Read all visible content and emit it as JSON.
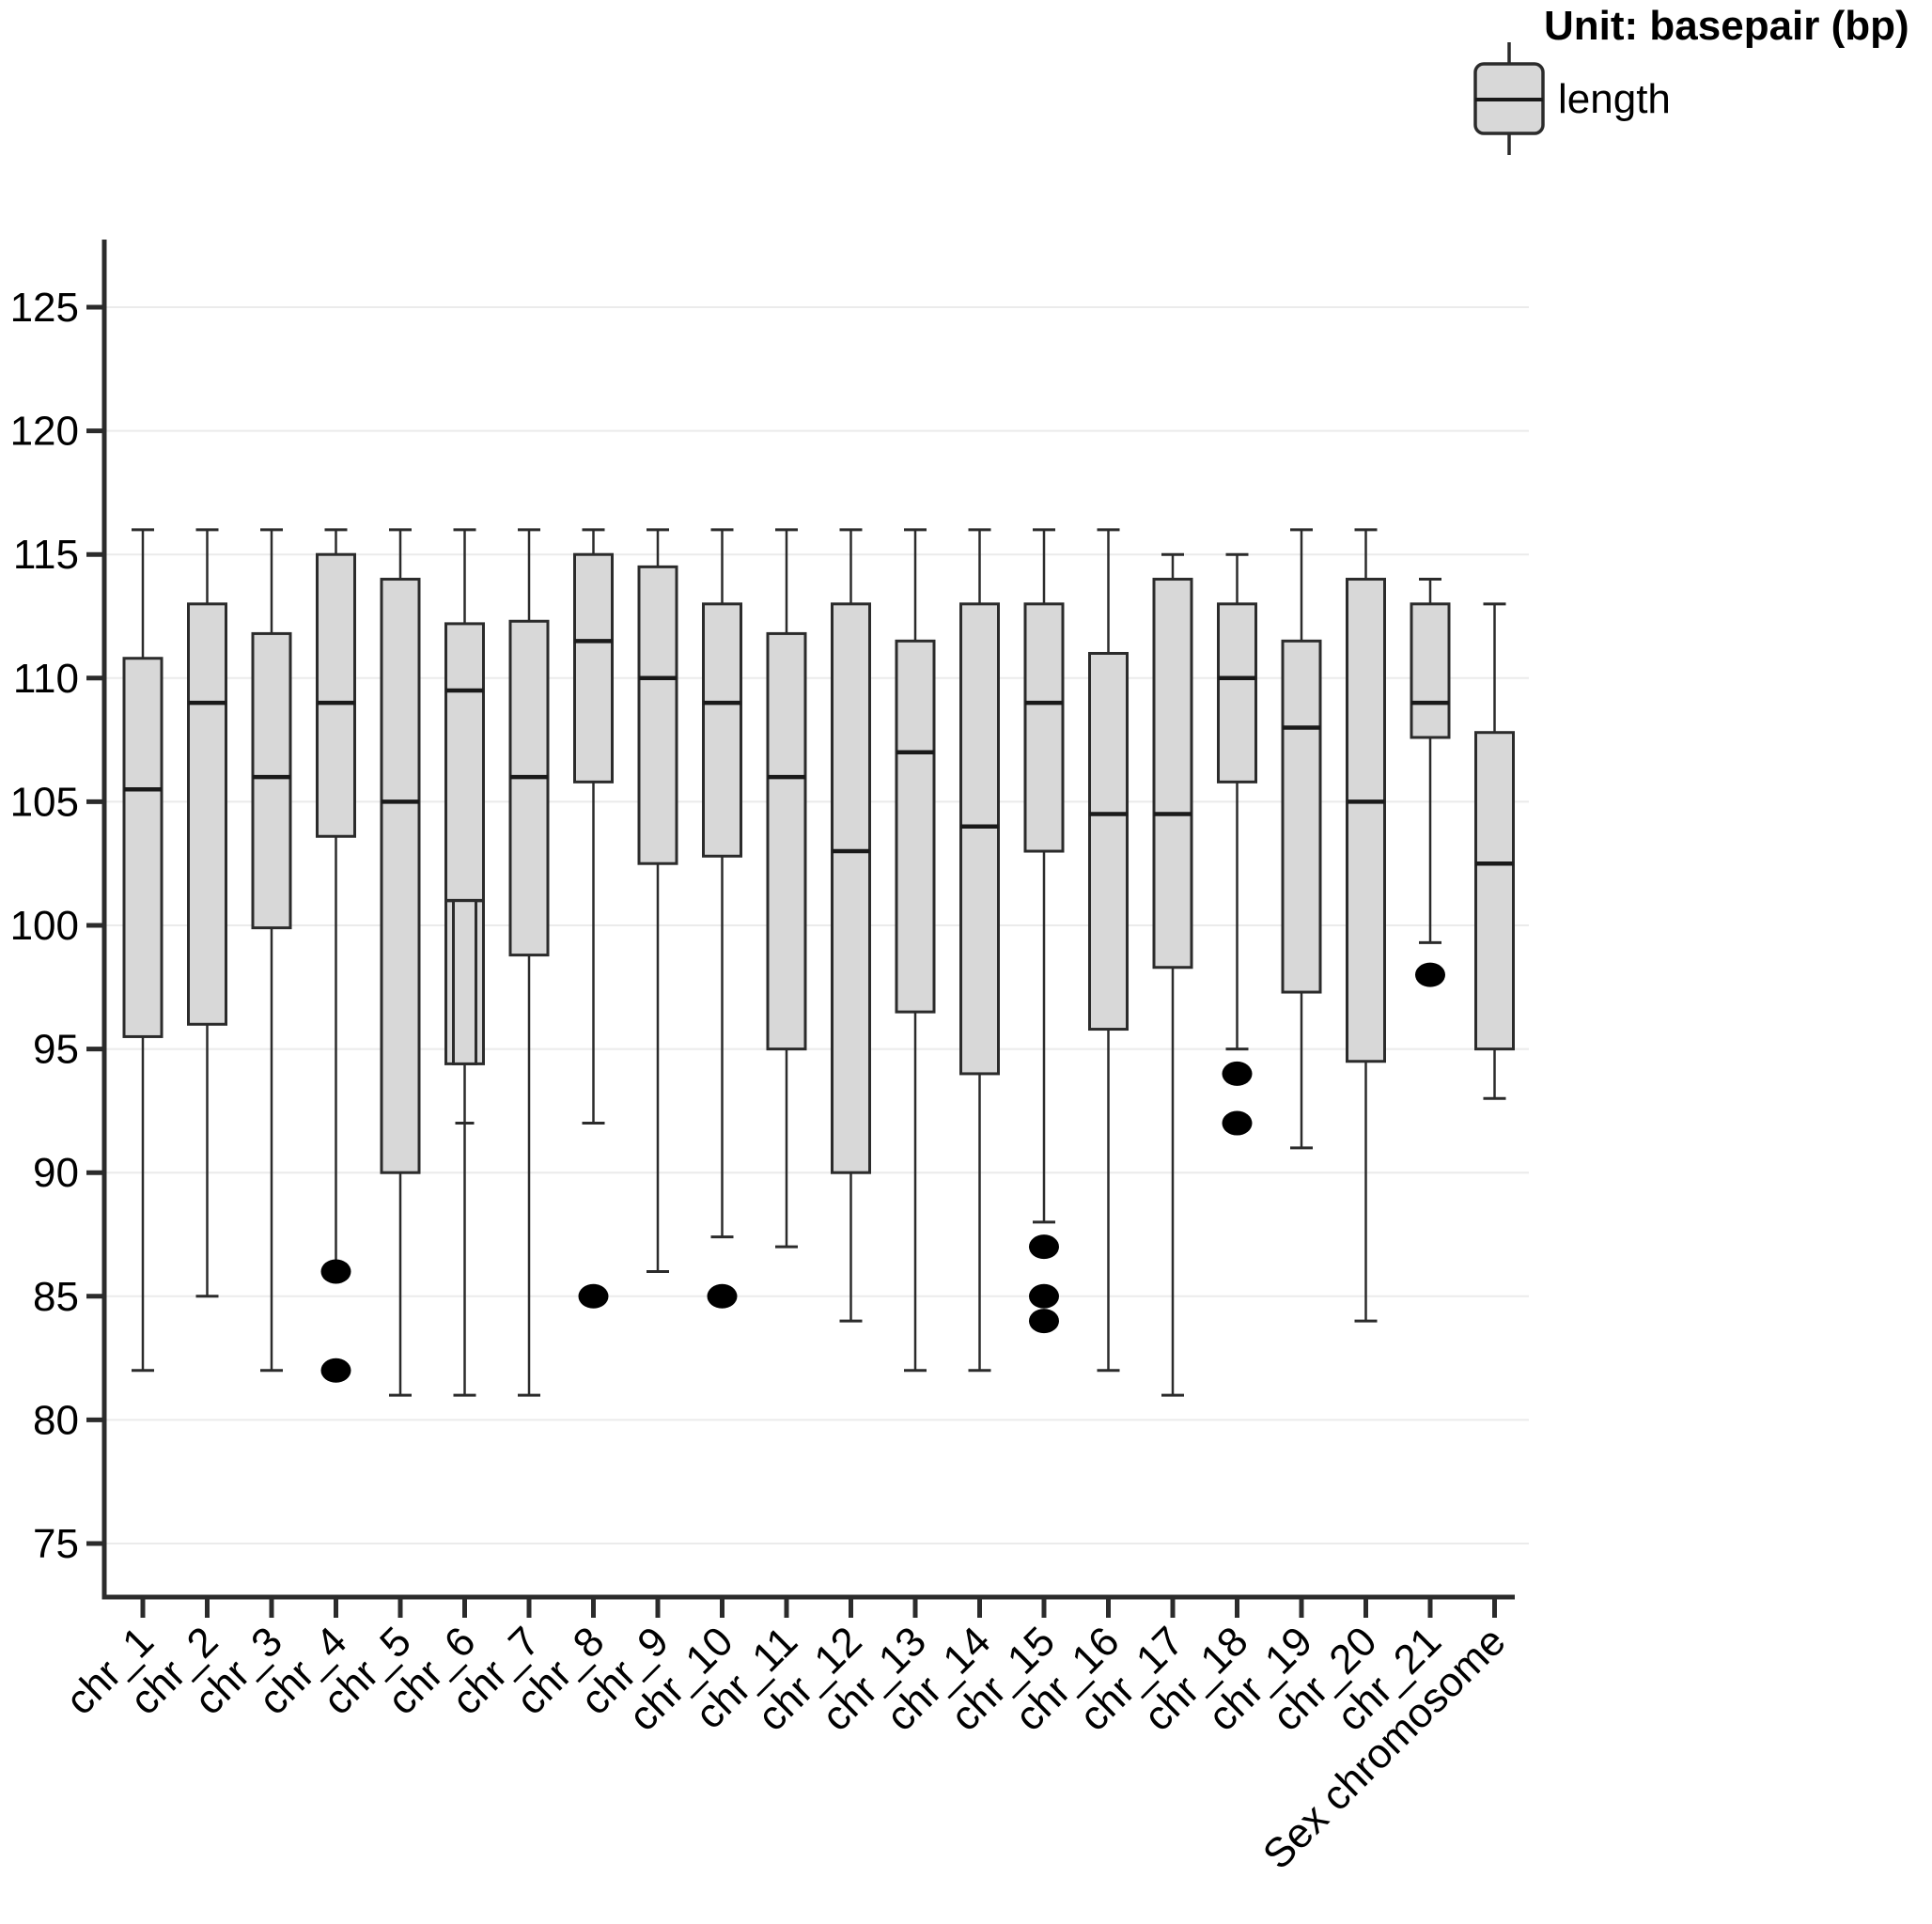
{
  "legend": {
    "title": "Unit: basepair (bp)",
    "item_label": "length"
  },
  "colors": {
    "background": "#ffffff",
    "box_fill": "#d8d8d8",
    "box_stroke": "#2b2b2b",
    "median_stroke": "#1a1a1a",
    "whisker": "#2b2b2b",
    "gridline": "#ebebeb",
    "axis": "#2b2b2b",
    "outlier": "#000000",
    "text": "#000000"
  },
  "chart_data": {
    "type": "boxplot",
    "title": "",
    "unit_label": "Unit: basepair (bp)",
    "series": "length",
    "xlabel": "",
    "ylabel": "",
    "ylim": [
      73,
      128
    ],
    "y_ticks": [
      75,
      80,
      85,
      90,
      95,
      100,
      105,
      110,
      115,
      120,
      125
    ],
    "grid": "horizontal-major",
    "legend_position": "top-right",
    "x_label_rotation_deg": 45,
    "boxes": [
      {
        "label": "chr_1",
        "whisker_low": 82,
        "q1": 95.5,
        "median": 105.5,
        "q3": 110.8,
        "whisker_high": 116,
        "outliers": [],
        "lower_cap": true
      },
      {
        "label": "chr_2",
        "whisker_low": 85,
        "q1": 96,
        "median": 109,
        "q3": 113,
        "whisker_high": 116,
        "outliers": [],
        "lower_cap": true
      },
      {
        "label": "chr_3",
        "whisker_low": 82,
        "q1": 99.9,
        "median": 106,
        "q3": 111.8,
        "whisker_high": 116,
        "outliers": [],
        "lower_cap": true
      },
      {
        "label": "chr_4",
        "whisker_low": 87,
        "q1": 103.6,
        "median": 109,
        "q3": 115,
        "whisker_high": 116,
        "outliers": [
          86,
          82
        ],
        "lower_cap": false
      },
      {
        "label": "chr_5",
        "whisker_low": 81,
        "q1": 90,
        "median": 105,
        "q3": 114,
        "whisker_high": 116,
        "outliers": [],
        "lower_cap": true
      },
      {
        "label": "chr_6",
        "whisker_low": 81,
        "q1": 94.4,
        "median": 109.5,
        "q3": 112.2,
        "whisker_high": 116,
        "outliers": [],
        "lower_cap": true,
        "extra_line": 101,
        "inner_box": {
          "top": 101,
          "bottom": 94.4,
          "whisker_low": 92
        }
      },
      {
        "label": "chr_7",
        "whisker_low": 81,
        "q1": 98.8,
        "median": 106,
        "q3": 112.3,
        "whisker_high": 116,
        "outliers": [],
        "lower_cap": true
      },
      {
        "label": "chr_8",
        "whisker_low": 92,
        "q1": 105.8,
        "median": 111.5,
        "q3": 115,
        "whisker_high": 116,
        "outliers": [
          85
        ],
        "lower_cap": true
      },
      {
        "label": "chr_9",
        "whisker_low": 86,
        "q1": 102.5,
        "median": 110,
        "q3": 114.5,
        "whisker_high": 116,
        "outliers": [],
        "lower_cap": true
      },
      {
        "label": "chr_10",
        "whisker_low": 87.4,
        "q1": 102.8,
        "median": 109,
        "q3": 113,
        "whisker_high": 116,
        "outliers": [
          85
        ],
        "lower_cap": true
      },
      {
        "label": "chr_11",
        "whisker_low": 87,
        "q1": 95,
        "median": 106,
        "q3": 111.8,
        "whisker_high": 116,
        "outliers": [],
        "lower_cap": true
      },
      {
        "label": "chr_12",
        "whisker_low": 84,
        "q1": 90,
        "median": 103,
        "q3": 113,
        "whisker_high": 116,
        "outliers": [],
        "lower_cap": true
      },
      {
        "label": "chr_13",
        "whisker_low": 82,
        "q1": 96.5,
        "median": 107,
        "q3": 111.5,
        "whisker_high": 116,
        "outliers": [],
        "lower_cap": true
      },
      {
        "label": "chr_14",
        "whisker_low": 82,
        "q1": 94,
        "median": 104,
        "q3": 113,
        "whisker_high": 116,
        "outliers": [],
        "lower_cap": true
      },
      {
        "label": "chr_15",
        "whisker_low": 88,
        "q1": 103,
        "median": 109,
        "q3": 113,
        "whisker_high": 116,
        "outliers": [
          87,
          85,
          84
        ],
        "lower_cap": true
      },
      {
        "label": "chr_16",
        "whisker_low": 82,
        "q1": 95.8,
        "median": 104.5,
        "q3": 111,
        "whisker_high": 116,
        "outliers": [],
        "lower_cap": true
      },
      {
        "label": "chr_17",
        "whisker_low": 81,
        "q1": 98.3,
        "median": 104.5,
        "q3": 114,
        "whisker_high": 115,
        "outliers": [],
        "lower_cap": true
      },
      {
        "label": "chr_18",
        "whisker_low": 95,
        "q1": 105.8,
        "median": 110,
        "q3": 113,
        "whisker_high": 115,
        "outliers": [
          94,
          92
        ],
        "lower_cap": true
      },
      {
        "label": "chr_19",
        "whisker_low": 91,
        "q1": 97.3,
        "median": 108,
        "q3": 111.5,
        "whisker_high": 116,
        "outliers": [],
        "lower_cap": true
      },
      {
        "label": "chr_20",
        "whisker_low": 84,
        "q1": 94.5,
        "median": 105,
        "q3": 114,
        "whisker_high": 116,
        "outliers": [],
        "lower_cap": true
      },
      {
        "label": "chr_21",
        "whisker_low": 99.3,
        "q1": 107.6,
        "median": 109,
        "q3": 113,
        "whisker_high": 114,
        "outliers": [
          98
        ],
        "lower_cap": true
      },
      {
        "label": "Sex chromosome",
        "whisker_low": 93,
        "q1": 95,
        "median": 102.5,
        "q3": 107.8,
        "whisker_high": 113,
        "outliers": [],
        "lower_cap": true
      }
    ]
  }
}
